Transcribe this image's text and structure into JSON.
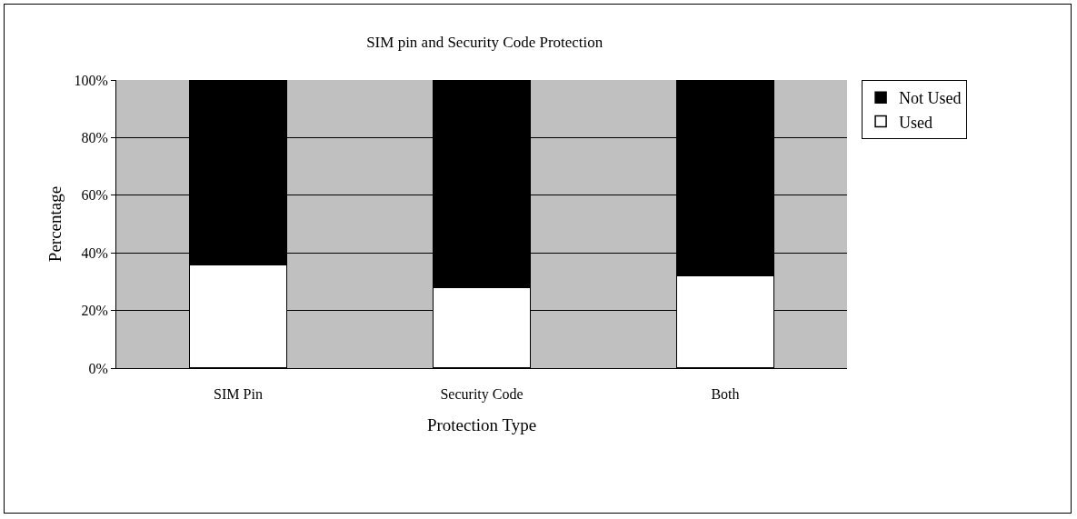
{
  "chart_data": {
    "type": "bar",
    "title": "SIM pin and Security Code Protection",
    "xlabel": "Protection Type",
    "ylabel": "Percentage",
    "categories": [
      "SIM Pin",
      "Security Code",
      "Both"
    ],
    "stacked": true,
    "series": [
      {
        "name": "Used",
        "color": "#ffffff",
        "values": [
          36,
          28,
          32
        ]
      },
      {
        "name": "Not Used",
        "color": "#000000",
        "values": [
          64,
          72,
          68
        ]
      }
    ],
    "ylim": [
      0,
      100
    ],
    "yticks": [
      {
        "value": 0,
        "label": "0%"
      },
      {
        "value": 20,
        "label": "20%"
      },
      {
        "value": 40,
        "label": "40%"
      },
      {
        "value": 60,
        "label": "60%"
      },
      {
        "value": 80,
        "label": "80%"
      },
      {
        "value": 100,
        "label": "100%"
      }
    ],
    "grid": "y",
    "legend": "right"
  }
}
